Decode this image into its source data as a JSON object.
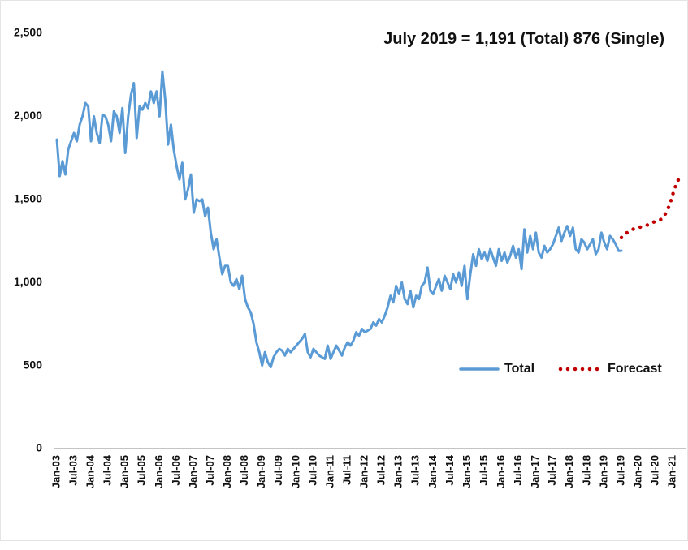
{
  "chart_data": {
    "type": "line",
    "annotation": "July 2019 = 1,191 (Total)  876 (Single)",
    "categories": [
      "Jan-03",
      null,
      null,
      null,
      null,
      null,
      "Jul-03",
      null,
      null,
      null,
      null,
      null,
      "Jan-04",
      null,
      null,
      null,
      null,
      null,
      "Jul-04",
      null,
      null,
      null,
      null,
      null,
      "Jan-05",
      null,
      null,
      null,
      null,
      null,
      "Jul-05",
      null,
      null,
      null,
      null,
      null,
      "Jan-06",
      null,
      null,
      null,
      null,
      null,
      "Jul-06",
      null,
      null,
      null,
      null,
      null,
      "Jan-07",
      null,
      null,
      null,
      null,
      null,
      "Jul-07",
      null,
      null,
      null,
      null,
      null,
      "Jan-08",
      null,
      null,
      null,
      null,
      null,
      "Jul-08",
      null,
      null,
      null,
      null,
      null,
      "Jan-09",
      null,
      null,
      null,
      null,
      null,
      "Jul-09",
      null,
      null,
      null,
      null,
      null,
      "Jan-10",
      null,
      null,
      null,
      null,
      null,
      "Jul-10",
      null,
      null,
      null,
      null,
      null,
      "Jan-11",
      null,
      null,
      null,
      null,
      null,
      "Jul-11",
      null,
      null,
      null,
      null,
      null,
      "Jan-12",
      null,
      null,
      null,
      null,
      null,
      "Jul-12",
      null,
      null,
      null,
      null,
      null,
      "Jan-13",
      null,
      null,
      null,
      null,
      null,
      "Jul-13",
      null,
      null,
      null,
      null,
      null,
      "Jan-14",
      null,
      null,
      null,
      null,
      null,
      "Jul-14",
      null,
      null,
      null,
      null,
      null,
      "Jan-15",
      null,
      null,
      null,
      null,
      null,
      "Jul-15",
      null,
      null,
      null,
      null,
      null,
      "Jan-16",
      null,
      null,
      null,
      null,
      null,
      "Jul-16",
      null,
      null,
      null,
      null,
      null,
      "Jan-17",
      null,
      null,
      null,
      null,
      null,
      "Jul-17",
      null,
      null,
      null,
      null,
      null,
      "Jan-18",
      null,
      null,
      null,
      null,
      null,
      "Jul-18",
      null,
      null,
      null,
      null,
      null,
      "Jan-19",
      null,
      null,
      null,
      null,
      null,
      "Jul-19",
      null,
      null,
      null,
      null,
      null,
      "Jan-20",
      null,
      null,
      null,
      null,
      null,
      "Jul-20",
      null,
      null,
      null,
      null,
      null,
      "Jan-21",
      null,
      null,
      null
    ],
    "series": [
      {
        "name": "Total",
        "color": "#5b9bd5",
        "style": "solid",
        "values": [
          1860,
          1640,
          1730,
          1650,
          1800,
          1850,
          1900,
          1850,
          1950,
          2000,
          2080,
          2060,
          1850,
          2000,
          1900,
          1840,
          2010,
          2000,
          1950,
          1850,
          2030,
          2000,
          1900,
          2050,
          1780,
          2000,
          2130,
          2200,
          1870,
          2060,
          2040,
          2080,
          2050,
          2150,
          2080,
          2150,
          2000,
          2270,
          2100,
          1830,
          1950,
          1800,
          1700,
          1620,
          1720,
          1500,
          1560,
          1650,
          1420,
          1500,
          1490,
          1500,
          1400,
          1450,
          1300,
          1200,
          1260,
          1150,
          1050,
          1100,
          1100,
          1000,
          980,
          1020,
          960,
          1040,
          900,
          850,
          820,
          750,
          640,
          580,
          500,
          580,
          520,
          490,
          550,
          580,
          600,
          590,
          560,
          600,
          580,
          600,
          620,
          640,
          660,
          690,
          580,
          550,
          600,
          580,
          560,
          550,
          540,
          620,
          540,
          580,
          620,
          590,
          560,
          610,
          640,
          620,
          650,
          700,
          680,
          720,
          700,
          710,
          720,
          760,
          740,
          780,
          760,
          800,
          850,
          920,
          880,
          980,
          930,
          1000,
          900,
          870,
          950,
          850,
          920,
          900,
          980,
          1000,
          1090,
          950,
          930,
          980,
          1020,
          950,
          1040,
          1000,
          960,
          1050,
          1000,
          1060,
          980,
          1100,
          900,
          1050,
          1170,
          1100,
          1200,
          1140,
          1180,
          1130,
          1200,
          1150,
          1100,
          1200,
          1130,
          1180,
          1120,
          1160,
          1220,
          1150,
          1200,
          1080,
          1320,
          1180,
          1280,
          1200,
          1300,
          1180,
          1150,
          1220,
          1180,
          1200,
          1230,
          1280,
          1330,
          1250,
          1300,
          1340,
          1280,
          1330,
          1200,
          1180,
          1260,
          1240,
          1200,
          1230,
          1260,
          1170,
          1200,
          1300,
          1240,
          1200,
          1280,
          1260,
          1230,
          1190,
          1191,
          null,
          null,
          null,
          null,
          null,
          null,
          null,
          null,
          null,
          null,
          null,
          null,
          null,
          null,
          null,
          null,
          null,
          null,
          null,
          null,
          null
        ]
      },
      {
        "name": "Forecast",
        "color": "#c00000",
        "style": "dotted",
        "values": [
          null,
          null,
          null,
          null,
          null,
          null,
          null,
          null,
          null,
          null,
          null,
          null,
          null,
          null,
          null,
          null,
          null,
          null,
          null,
          null,
          null,
          null,
          null,
          null,
          null,
          null,
          null,
          null,
          null,
          null,
          null,
          null,
          null,
          null,
          null,
          null,
          null,
          null,
          null,
          null,
          null,
          null,
          null,
          null,
          null,
          null,
          null,
          null,
          null,
          null,
          null,
          null,
          null,
          null,
          null,
          null,
          null,
          null,
          null,
          null,
          null,
          null,
          null,
          null,
          null,
          null,
          null,
          null,
          null,
          null,
          null,
          null,
          null,
          null,
          null,
          null,
          null,
          null,
          null,
          null,
          null,
          null,
          null,
          null,
          null,
          null,
          null,
          null,
          null,
          null,
          null,
          null,
          null,
          null,
          null,
          null,
          null,
          null,
          null,
          null,
          null,
          null,
          null,
          null,
          null,
          null,
          null,
          null,
          null,
          null,
          null,
          null,
          null,
          null,
          null,
          null,
          null,
          null,
          null,
          null,
          null,
          null,
          null,
          null,
          null,
          null,
          null,
          null,
          null,
          null,
          null,
          null,
          null,
          null,
          null,
          null,
          null,
          null,
          null,
          null,
          null,
          null,
          null,
          null,
          null,
          null,
          null,
          null,
          null,
          null,
          null,
          null,
          null,
          null,
          null,
          null,
          null,
          null,
          null,
          null,
          null,
          null,
          null,
          null,
          null,
          null,
          null,
          null,
          null,
          null,
          null,
          null,
          null,
          null,
          null,
          null,
          null,
          null,
          null,
          null,
          null,
          null,
          null,
          null,
          null,
          null,
          null,
          null,
          null,
          null,
          null,
          null,
          null,
          null,
          null,
          null,
          null,
          null,
          1270,
          1285,
          1300,
          1310,
          1320,
          1325,
          1330,
          1335,
          1340,
          1345,
          1350,
          1360,
          1370,
          1375,
          1380,
          1400,
          1430,
          1470,
          1530,
          1580,
          1620,
          1650
        ]
      }
    ],
    "ylim": [
      0,
      2500
    ],
    "yticks": [
      0,
      500,
      {
        "value": 1000,
        "label": "1,000"
      },
      {
        "value": 1500,
        "label": "1,500"
      },
      {
        "value": 2000,
        "label": "2,000"
      },
      {
        "value": 2500,
        "label": "2,500"
      }
    ],
    "grid": false,
    "legend": "lower right"
  }
}
